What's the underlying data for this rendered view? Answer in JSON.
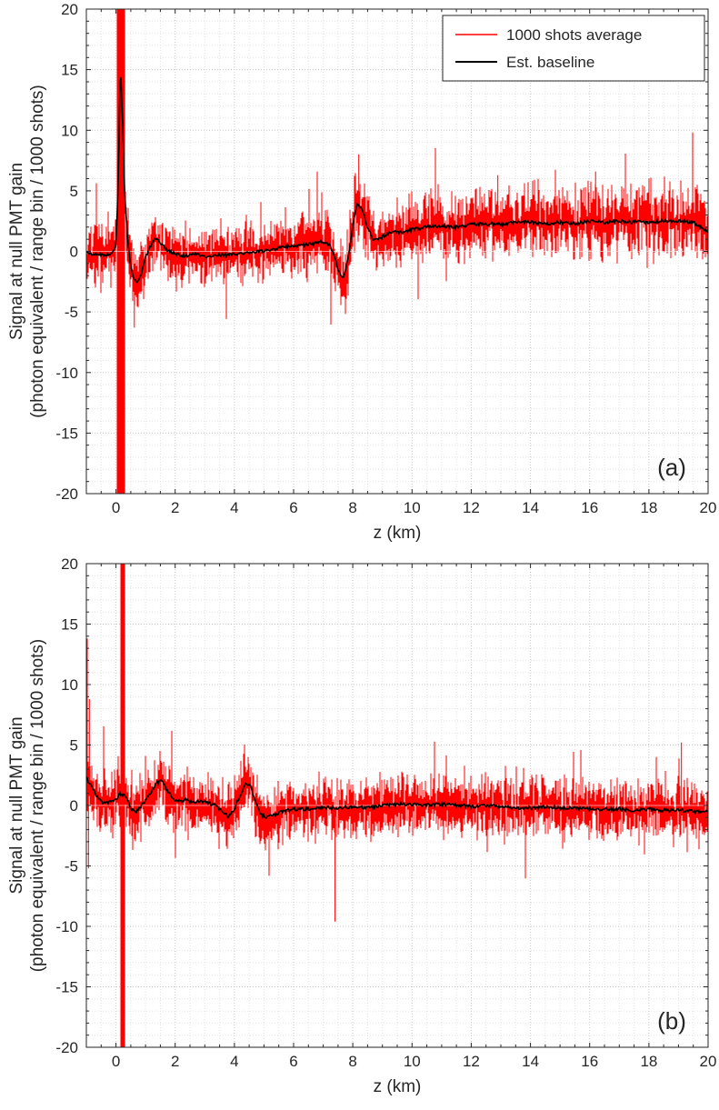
{
  "figure": {
    "background": "#ffffff",
    "axis_color": "#262626",
    "grid_major_color": "#c8c8c8",
    "grid_minor_color": "#e2e2e2"
  },
  "chart_data": [
    {
      "type": "line",
      "panel_label": "(a)",
      "xlabel": "z (km)",
      "ylabel_lines": [
        "Signal at null PMT gain",
        "(photon equivalent / range bin / 1000 shots)"
      ],
      "xlim": [
        -1,
        20
      ],
      "ylim": [
        -20,
        20
      ],
      "xticks": [
        0,
        2,
        4,
        6,
        8,
        10,
        12,
        14,
        16,
        18,
        20
      ],
      "yticks": [
        -20,
        -15,
        -10,
        -5,
        0,
        5,
        10,
        15,
        20
      ],
      "minor_grid": {
        "x": 0.5,
        "y": 1
      },
      "grid": "dotted",
      "legend": {
        "position": "top-right",
        "entries": [
          {
            "label": "1000 shots average",
            "color": "#ff0000"
          },
          {
            "label": "Est. baseline",
            "color": "#000000"
          }
        ]
      },
      "noise_seed": 42,
      "series": [
        {
          "name": "1000 shots average",
          "color": "#ff0000",
          "style": "noise-band",
          "envelope": [
            [
              -1,
              2.3
            ],
            [
              0,
              2.4
            ],
            [
              1,
              2.3
            ],
            [
              2,
              2.1
            ],
            [
              3,
              2.2
            ],
            [
              4,
              2.2
            ],
            [
              5,
              2.2
            ],
            [
              6,
              2.3
            ],
            [
              7,
              2.4
            ],
            [
              8,
              2.8
            ],
            [
              9,
              2.4
            ],
            [
              10,
              2.5
            ],
            [
              12,
              2.6
            ],
            [
              14,
              2.7
            ],
            [
              16,
              2.8
            ],
            [
              18,
              2.8
            ],
            [
              20,
              3.0
            ]
          ],
          "saturation_spans": [
            {
              "from": 0.02,
              "to": 0.32
            }
          ],
          "extra_spikes": [
            {
              "x": 8.2,
              "y": 8.0
            },
            {
              "x": 0.62,
              "y": -6.3
            },
            {
              "x": 12.9,
              "y": 6.3
            },
            {
              "x": 16.2,
              "y": 6.6
            }
          ]
        },
        {
          "name": "Est. baseline",
          "color": "#000000",
          "style": "line",
          "points": [
            [
              -1,
              -0.2
            ],
            [
              -0.5,
              -0.3
            ],
            [
              -0.15,
              -0.2
            ],
            [
              0,
              0.3
            ],
            [
              0.08,
              6
            ],
            [
              0.15,
              15.5
            ],
            [
              0.22,
              11
            ],
            [
              0.3,
              4.5
            ],
            [
              0.4,
              0.8
            ],
            [
              0.5,
              -1.2
            ],
            [
              0.6,
              -2.2
            ],
            [
              0.7,
              -2.6
            ],
            [
              0.8,
              -2.2
            ],
            [
              0.9,
              -1.4
            ],
            [
              1.0,
              -0.5
            ],
            [
              1.15,
              0.4
            ],
            [
              1.3,
              1.0
            ],
            [
              1.45,
              0.9
            ],
            [
              1.6,
              0.4
            ],
            [
              1.8,
              0.0
            ],
            [
              2.0,
              -0.2
            ],
            [
              2.3,
              -0.4
            ],
            [
              2.6,
              -0.2
            ],
            [
              3.0,
              -0.4
            ],
            [
              3.4,
              -0.3
            ],
            [
              3.8,
              -0.3
            ],
            [
              4.2,
              -0.2
            ],
            [
              4.6,
              -0.1
            ],
            [
              5.0,
              0.0
            ],
            [
              5.4,
              0.2
            ],
            [
              5.8,
              0.4
            ],
            [
              6.2,
              0.5
            ],
            [
              6.6,
              0.6
            ],
            [
              7.0,
              0.8
            ],
            [
              7.2,
              0.6
            ],
            [
              7.4,
              -0.5
            ],
            [
              7.55,
              -1.9
            ],
            [
              7.7,
              -2.1
            ],
            [
              7.85,
              -0.5
            ],
            [
              8.0,
              2.2
            ],
            [
              8.15,
              3.9
            ],
            [
              8.3,
              3.6
            ],
            [
              8.5,
              2.0
            ],
            [
              8.7,
              0.9
            ],
            [
              8.9,
              1.0
            ],
            [
              9.1,
              1.4
            ],
            [
              9.4,
              1.7
            ],
            [
              9.7,
              1.5
            ],
            [
              10,
              1.8
            ],
            [
              10.5,
              2.0
            ],
            [
              11,
              2.1
            ],
            [
              11.5,
              2.0
            ],
            [
              12,
              2.2
            ],
            [
              12.5,
              2.3
            ],
            [
              13,
              2.2
            ],
            [
              13.5,
              2.4
            ],
            [
              14,
              2.4
            ],
            [
              14.5,
              2.3
            ],
            [
              15,
              2.4
            ],
            [
              15.5,
              2.3
            ],
            [
              16,
              2.5
            ],
            [
              16.5,
              2.4
            ],
            [
              17,
              2.5
            ],
            [
              17.5,
              2.4
            ],
            [
              18,
              2.4
            ],
            [
              18.5,
              2.5
            ],
            [
              19,
              2.5
            ],
            [
              19.5,
              2.4
            ],
            [
              20,
              1.6
            ]
          ]
        }
      ]
    },
    {
      "type": "line",
      "panel_label": "(b)",
      "xlabel": "z (km)",
      "ylabel_lines": [
        "Signal at null PMT gain",
        "(photon equivalent / range bin / 1000 shots)"
      ],
      "xlim": [
        -1,
        20
      ],
      "ylim": [
        -20,
        20
      ],
      "xticks": [
        0,
        2,
        4,
        6,
        8,
        10,
        12,
        14,
        16,
        18,
        20
      ],
      "yticks": [
        -20,
        -15,
        -10,
        -5,
        0,
        5,
        10,
        15,
        20
      ],
      "minor_grid": {
        "x": 0.5,
        "y": 1
      },
      "grid": "dotted",
      "legend": null,
      "noise_seed": 1337,
      "series": [
        {
          "name": "1000 shots average",
          "color": "#ff0000",
          "style": "noise-band",
          "envelope": [
            [
              -1,
              2.6
            ],
            [
              0,
              2.4
            ],
            [
              1,
              2.4
            ],
            [
              1.5,
              2.7
            ],
            [
              2,
              2.4
            ],
            [
              3,
              2.3
            ],
            [
              4,
              2.5
            ],
            [
              5,
              2.4
            ],
            [
              6,
              2.3
            ],
            [
              7,
              2.3
            ],
            [
              8,
              2.3
            ],
            [
              10,
              2.3
            ],
            [
              12,
              2.4
            ],
            [
              14,
              2.4
            ],
            [
              16,
              2.4
            ],
            [
              18,
              2.4
            ],
            [
              20,
              2.4
            ]
          ],
          "saturation_spans": [
            {
              "from": 0.15,
              "to": 0.3
            }
          ],
          "extra_spikes": [
            {
              "x": -0.97,
              "y": 13.8
            },
            {
              "x": -0.9,
              "y": 8.8
            },
            {
              "x": -0.93,
              "y": -5.2
            },
            {
              "x": 19.1,
              "y": 5.2
            },
            {
              "x": 7.4,
              "y": -9.6
            }
          ]
        },
        {
          "name": "Est. baseline",
          "color": "#000000",
          "style": "line",
          "points": [
            [
              -1,
              2.3
            ],
            [
              -0.8,
              1.4
            ],
            [
              -0.6,
              0.6
            ],
            [
              -0.4,
              0.2
            ],
            [
              -0.2,
              0.3
            ],
            [
              0,
              0.5
            ],
            [
              0.15,
              1.0
            ],
            [
              0.3,
              0.8
            ],
            [
              0.5,
              -0.2
            ],
            [
              0.65,
              -0.6
            ],
            [
              0.8,
              -0.2
            ],
            [
              1.0,
              0.4
            ],
            [
              1.2,
              1.2
            ],
            [
              1.4,
              1.9
            ],
            [
              1.55,
              2.0
            ],
            [
              1.7,
              1.4
            ],
            [
              1.9,
              0.6
            ],
            [
              2.1,
              0.3
            ],
            [
              2.35,
              0.5
            ],
            [
              2.6,
              0.2
            ],
            [
              2.85,
              0.4
            ],
            [
              3.1,
              0.2
            ],
            [
              3.35,
              0.0
            ],
            [
              3.6,
              -0.5
            ],
            [
              3.8,
              -0.9
            ],
            [
              4.0,
              -0.3
            ],
            [
              4.2,
              0.9
            ],
            [
              4.4,
              1.9
            ],
            [
              4.55,
              1.6
            ],
            [
              4.7,
              0.4
            ],
            [
              4.9,
              -0.8
            ],
            [
              5.1,
              -1.0
            ],
            [
              5.3,
              -0.8
            ],
            [
              5.6,
              -0.5
            ],
            [
              6.0,
              -0.3
            ],
            [
              6.5,
              -0.3
            ],
            [
              7.0,
              -0.2
            ],
            [
              7.5,
              -0.2
            ],
            [
              8.0,
              -0.1
            ],
            [
              8.5,
              -0.2
            ],
            [
              9.0,
              0.0
            ],
            [
              9.5,
              0.1
            ],
            [
              10,
              0.1
            ],
            [
              10.5,
              0.0
            ],
            [
              11,
              0.1
            ],
            [
              11.5,
              0.0
            ],
            [
              12,
              -0.1
            ],
            [
              12.5,
              0.0
            ],
            [
              13,
              -0.1
            ],
            [
              13.5,
              -0.2
            ],
            [
              14,
              -0.2
            ],
            [
              14.5,
              -0.1
            ],
            [
              15,
              -0.2
            ],
            [
              15.5,
              -0.2
            ],
            [
              16,
              -0.3
            ],
            [
              16.5,
              -0.3
            ],
            [
              17,
              -0.3
            ],
            [
              17.5,
              -0.4
            ],
            [
              18,
              -0.3
            ],
            [
              18.5,
              -0.4
            ],
            [
              19,
              -0.4
            ],
            [
              19.5,
              -0.5
            ],
            [
              20,
              -0.5
            ]
          ]
        }
      ]
    }
  ]
}
